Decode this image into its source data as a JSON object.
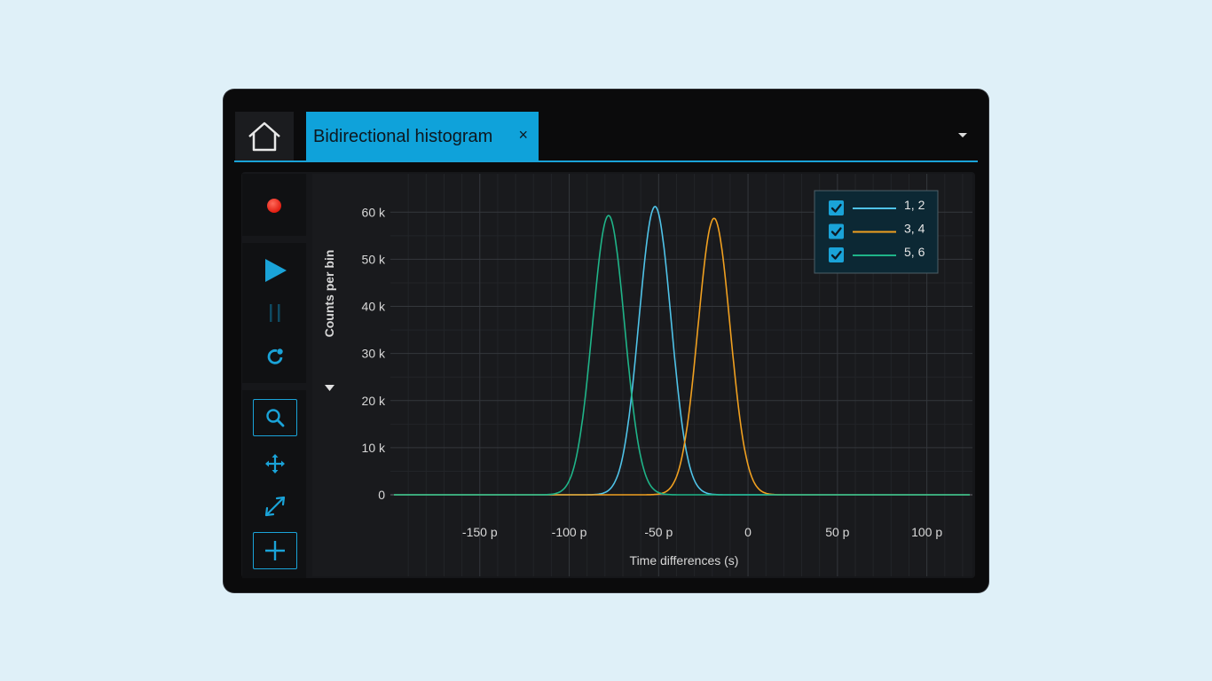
{
  "tab": {
    "title": "Bidirectional histogram",
    "close_glyph": "×"
  },
  "toolbar": {
    "record": "record-icon",
    "play": "play-icon",
    "pause": "pause-icon",
    "reset": "refresh-icon",
    "zoom": "zoom-icon",
    "pan": "move-icon",
    "fit": "expand-icon",
    "crosshair": "crosshair-icon"
  },
  "colors": {
    "accent": "#1aa3d8",
    "record": "#ff2a1a"
  },
  "chart_data": {
    "type": "line",
    "title": "",
    "xlabel": "Time differences (s)",
    "ylabel": "Counts per bin",
    "xlim": [
      -200,
      125
    ],
    "ylim": [
      0,
      64000
    ],
    "x_ticks": [
      -150,
      -100,
      -50,
      0,
      50,
      100
    ],
    "x_tick_labels": [
      "-150 p",
      "-100 p",
      "-50 p",
      "0",
      "50 p",
      "100 p"
    ],
    "y_ticks": [
      0,
      10000,
      20000,
      30000,
      40000,
      50000,
      60000
    ],
    "y_tick_labels": [
      "0",
      "10 k",
      "20 k",
      "30 k",
      "40 k",
      "50 k",
      "60 k"
    ],
    "grid": true,
    "legend_position": "top-right",
    "series": [
      {
        "name": "1, 2",
        "color": "#4fc3e8",
        "peak_x": -52,
        "peak_y": 61200,
        "sigma": 9
      },
      {
        "name": "3, 4",
        "color": "#f0a020",
        "peak_x": -19,
        "peak_y": 58700,
        "sigma": 9
      },
      {
        "name": "5, 6",
        "color": "#1fb488",
        "peak_x": -78,
        "peak_y": 59300,
        "sigma": 9
      }
    ]
  }
}
